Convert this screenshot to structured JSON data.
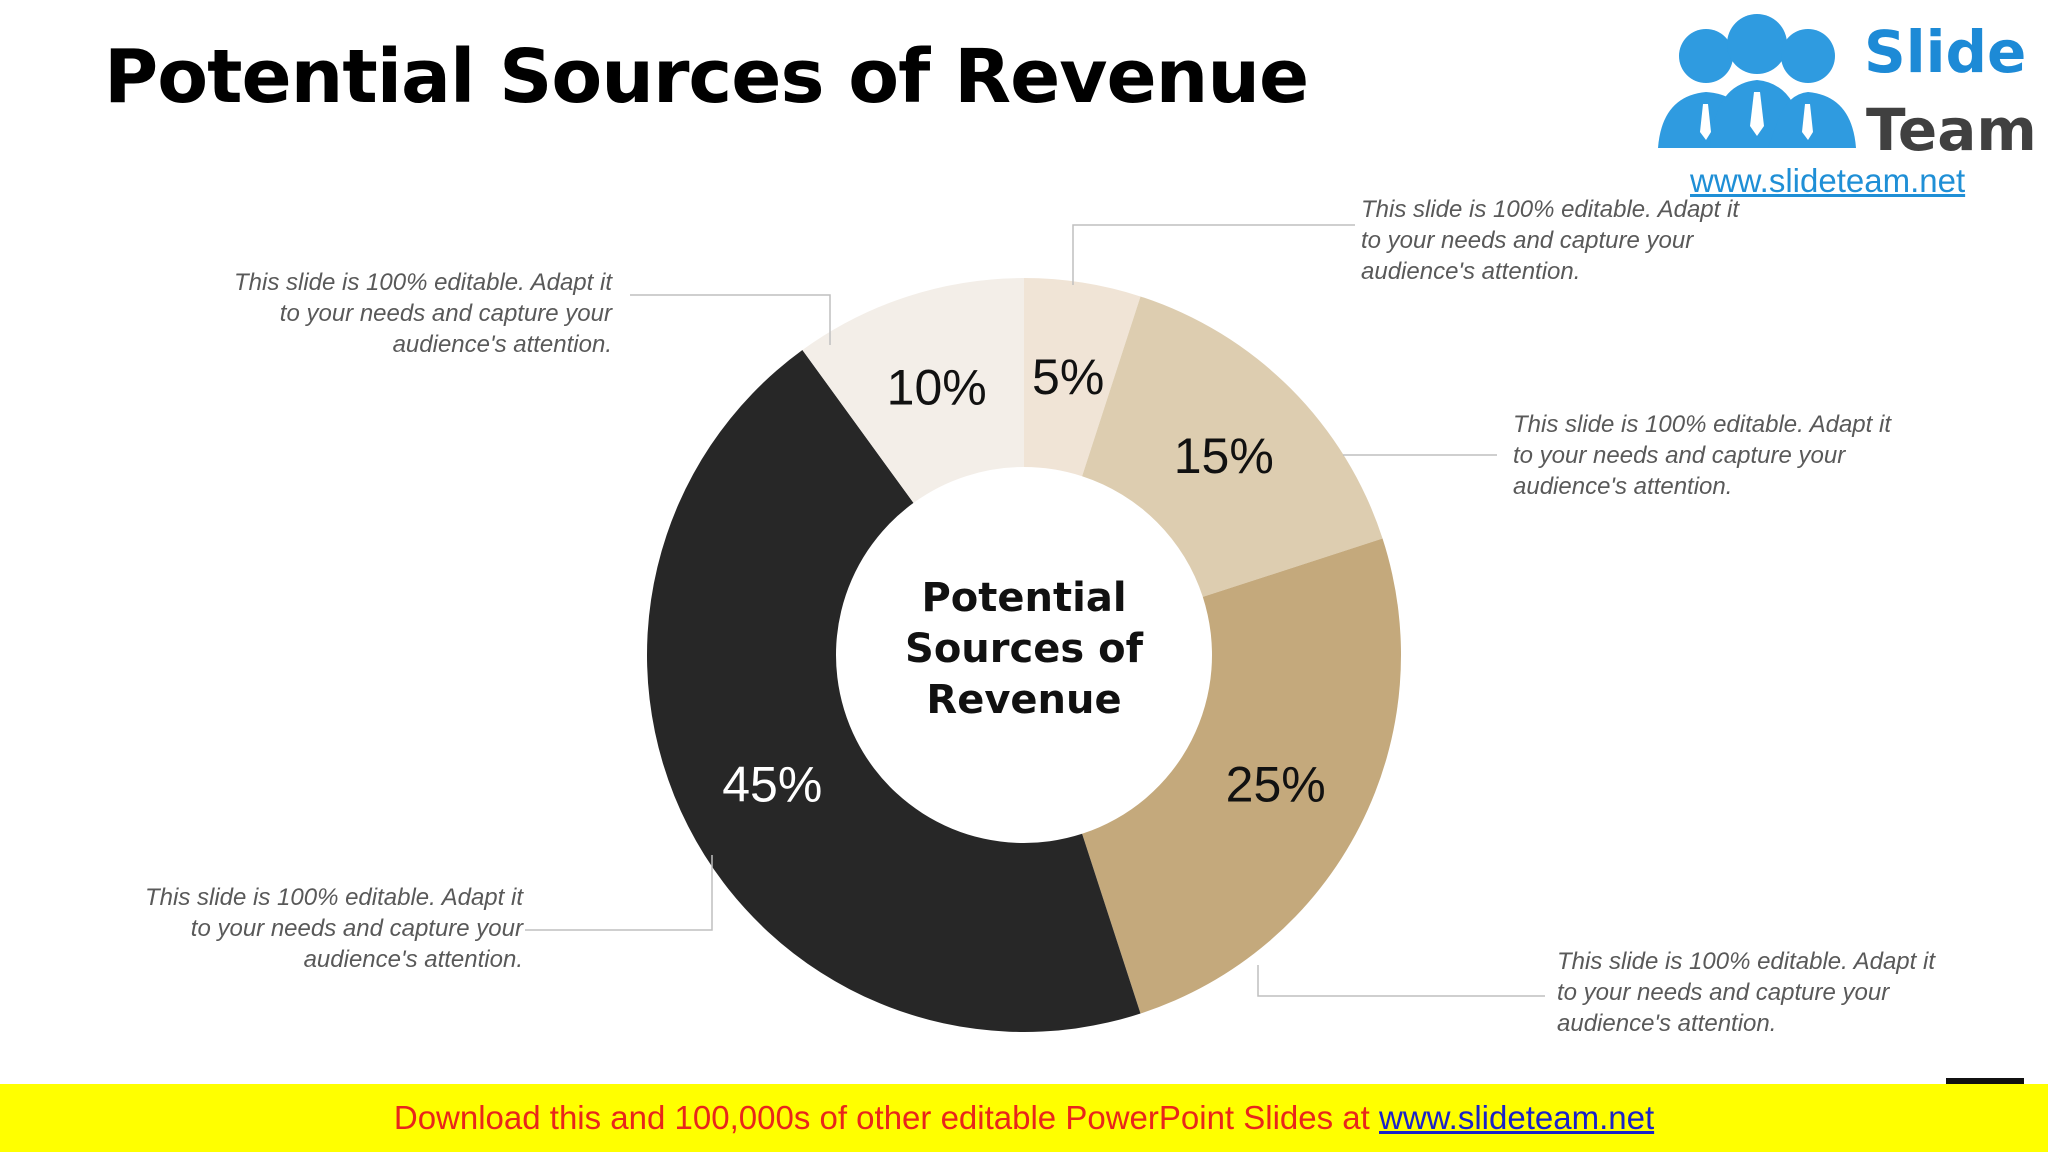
{
  "slide": {
    "title": "Potential Sources of Revenue"
  },
  "logo": {
    "word1": "Slide",
    "word2": "Team",
    "url": "www.slideteam.net",
    "colors": {
      "figures": "#2f9be0",
      "text": "#1d8ad6",
      "team_text": "#404040"
    }
  },
  "chart_data": {
    "type": "pie",
    "donut": true,
    "center_label": [
      "Potential",
      "Sources of",
      "Revenue"
    ],
    "slices": [
      {
        "label": "5%",
        "value": 5,
        "color": "#f0e4d6",
        "label_color": "#111111"
      },
      {
        "label": "15%",
        "value": 15,
        "color": "#ddcdb0",
        "label_color": "#111111"
      },
      {
        "label": "25%",
        "value": 25,
        "color": "#c4a97c",
        "label_color": "#111111"
      },
      {
        "label": "45%",
        "value": 45,
        "color": "#272727",
        "label_color": "#ffffff"
      },
      {
        "label": "10%",
        "value": 10,
        "color": "#f3eee8",
        "label_color": "#111111"
      }
    ]
  },
  "callouts": [
    {
      "text": "This slide is 100% editable. Adapt it to your needs and capture your audience's attention."
    },
    {
      "text": "This slide is 100% editable. Adapt it to your needs and capture your audience's attention."
    },
    {
      "text": "This slide is 100% editable. Adapt it to your needs and capture your audience's attention."
    },
    {
      "text": "This slide is 100% editable. Adapt it to your needs and capture your audience's attention."
    },
    {
      "text": "This slide is 100% editable. Adapt it to your needs and capture your audience's attention."
    }
  ],
  "banner": {
    "text": "Download this and 100,000s of other editable PowerPoint Slides at ",
    "link": "www.slideteam.net"
  }
}
